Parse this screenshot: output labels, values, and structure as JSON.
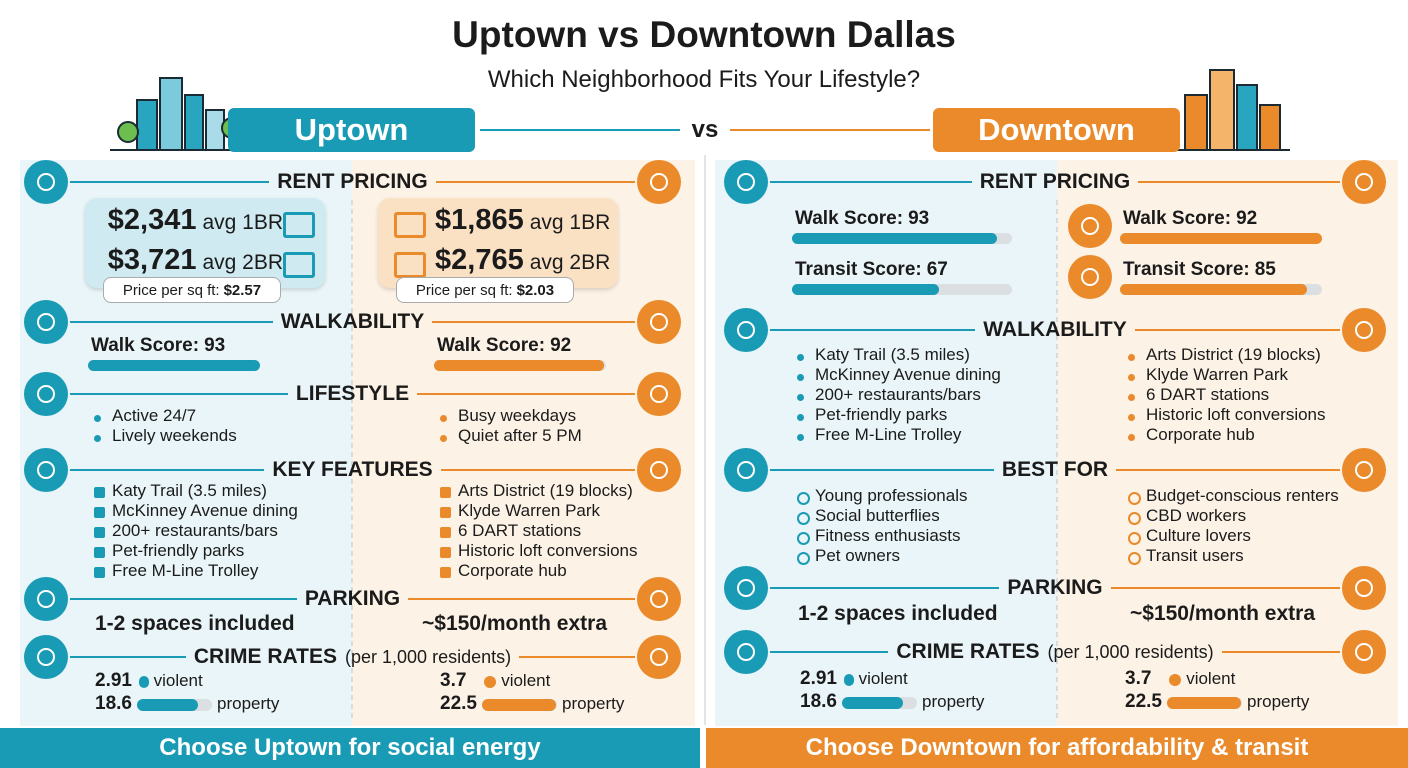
{
  "header": {
    "title": "Uptown vs Downtown Dallas",
    "subtitle": "Which Neighborhood Fits Your Lifestyle?",
    "left_banner": "Uptown",
    "vs": "vs",
    "right_banner": "Downtown"
  },
  "left": {
    "rent": {
      "heading": "RENT PRICING",
      "uptown": {
        "lines": [
          {
            "price": "$2,341",
            "unit": "avg 1BR"
          },
          {
            "price": "$3,721",
            "unit": "avg 2BR"
          }
        ],
        "sqft_label": "Price per sq ft:",
        "sqft": "$2.57"
      },
      "downtown": {
        "lines": [
          {
            "price": "$1,865",
            "unit": "avg 1BR"
          },
          {
            "price": "$2,765",
            "unit": "avg 2BR"
          }
        ],
        "sqft_label": "Price per sq ft:",
        "sqft": "$2.03"
      }
    },
    "walkability": {
      "heading": "WALKABILITY",
      "uptown": {
        "label": "Walk Score:",
        "value": 93
      },
      "downtown": {
        "label": "Walk Score:",
        "value": 92
      }
    },
    "lifestyle": {
      "heading": "LIFESTYLE",
      "uptown": [
        "Active 24/7",
        "Lively weekends"
      ],
      "downtown": [
        "Busy weekdays",
        "Quiet after 5 PM"
      ]
    },
    "features": {
      "heading": "KEY FEATURES",
      "uptown": [
        "Katy Trail (3.5 miles)",
        "McKinney Avenue dining",
        "200+ restaurants/bars",
        "Pet-friendly parks",
        "Free M-Line Trolley"
      ],
      "downtown": [
        "Arts District (19 blocks)",
        "Klyde Warren Park",
        "6 DART stations",
        "Historic loft conversions",
        "Corporate hub"
      ]
    },
    "parking": {
      "heading": "PARKING",
      "uptown": "1-2 spaces included",
      "downtown": "~$150/month extra"
    },
    "crime": {
      "heading": "CRIME RATES",
      "note": "(per 1,000 residents)",
      "violent_label": "violent",
      "property_label": "property",
      "uptown": {
        "violent": 2.91,
        "property": 18.6
      },
      "downtown": {
        "violent": 3.7,
        "property": 22.5
      }
    }
  },
  "right": {
    "rent": {
      "heading": "RENT PRICING",
      "uptown": [
        {
          "label": "Walk Score:",
          "value": 93
        },
        {
          "label": "Transit Score:",
          "value": 67
        }
      ],
      "downtown": [
        {
          "label": "Walk Score:",
          "value": 92
        },
        {
          "label": "Transit Score:",
          "value": 85
        }
      ]
    },
    "walkability": {
      "heading": "WALKABILITY",
      "uptown": [
        "Katy Trail (3.5 miles)",
        "McKinney Avenue dining",
        "200+ restaurants/bars",
        "Pet-friendly parks",
        "Free M-Line Trolley"
      ],
      "downtown": [
        "Arts District (19 blocks)",
        "Klyde Warren Park",
        "6 DART stations",
        "Historic loft conversions",
        "Corporate hub"
      ]
    },
    "best_for": {
      "heading": "BEST FOR",
      "uptown": [
        "Young professionals",
        "Social butterflies",
        "Fitness enthusiasts",
        "Pet owners"
      ],
      "downtown": [
        "Budget-conscious renters",
        "CBD workers",
        "Culture lovers",
        "Transit users"
      ]
    },
    "parking": {
      "heading": "PARKING",
      "uptown": "1-2 spaces included",
      "downtown": "~$150/month extra"
    },
    "crime": {
      "heading": "CRIME RATES",
      "note": "(per 1,000 residents)",
      "violent_label": "violent",
      "property_label": "property",
      "uptown": {
        "violent": 2.91,
        "property": 18.6
      },
      "downtown": {
        "violent": 3.7,
        "property": 22.5
      }
    }
  },
  "footer": {
    "left": "Choose Uptown for social energy",
    "right": "Choose Downtown for affordability & transit"
  }
}
